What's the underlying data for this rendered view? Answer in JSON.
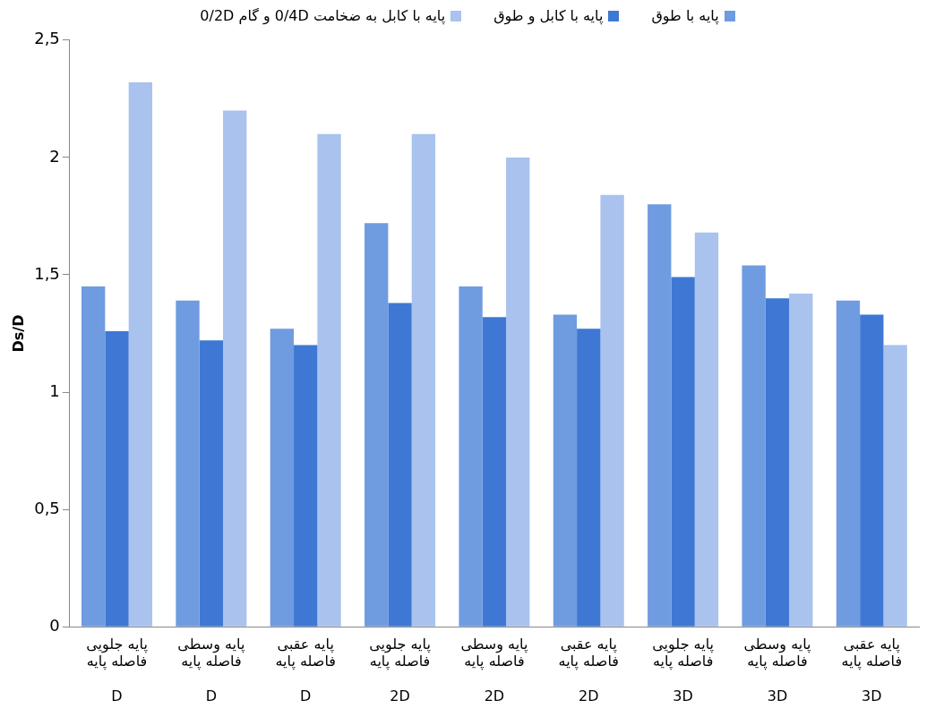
{
  "chart_data": {
    "type": "bar",
    "ylabel": "Ds/D",
    "categories": [
      "پایه جلویی\nفاصله پایه\n\nD",
      "پایه وسطی\nفاصله پایه\n\nD",
      "پایه عقبی\nفاصله پایه\n\nD",
      "پایه جلویی\nفاصله پایه\n\n2D",
      "پایه وسطی\nفاصله پایه\n\n2D",
      "پایه عقبی\nفاصله پایه\n\n2D",
      "پایه جلویی\nفاصله پایه\n\n3D",
      "پایه وسطی\nفاصله پایه\n\n3D",
      "پایه عقبی\nفاصله پایه\n\n3D"
    ],
    "series": [
      {
        "name": "پایه با طوق",
        "color": "#6f9be0",
        "values": [
          1.45,
          1.39,
          1.27,
          1.72,
          1.45,
          1.33,
          1.8,
          1.54,
          1.39
        ]
      },
      {
        "name": "پایه با کابل و طوق",
        "color": "#3f78d4",
        "values": [
          1.26,
          1.22,
          1.2,
          1.38,
          1.32,
          1.27,
          1.49,
          1.4,
          1.33
        ]
      },
      {
        "name": "پایه با کابل به ضخامت 0/4D و گام 0/2D",
        "color": "#a9c2ee",
        "values": [
          2.32,
          2.2,
          2.1,
          2.1,
          2.0,
          1.84,
          1.68,
          1.42,
          1.2
        ]
      }
    ],
    "ylim": [
      0,
      2.5
    ],
    "yticks": [
      0,
      {
        "value": 0.5,
        "label": "0,5"
      },
      1,
      {
        "value": 1.5,
        "label": "1,5"
      },
      2,
      {
        "value": 2.5,
        "label": "2,5"
      }
    ],
    "grid": false,
    "legend": "top"
  }
}
